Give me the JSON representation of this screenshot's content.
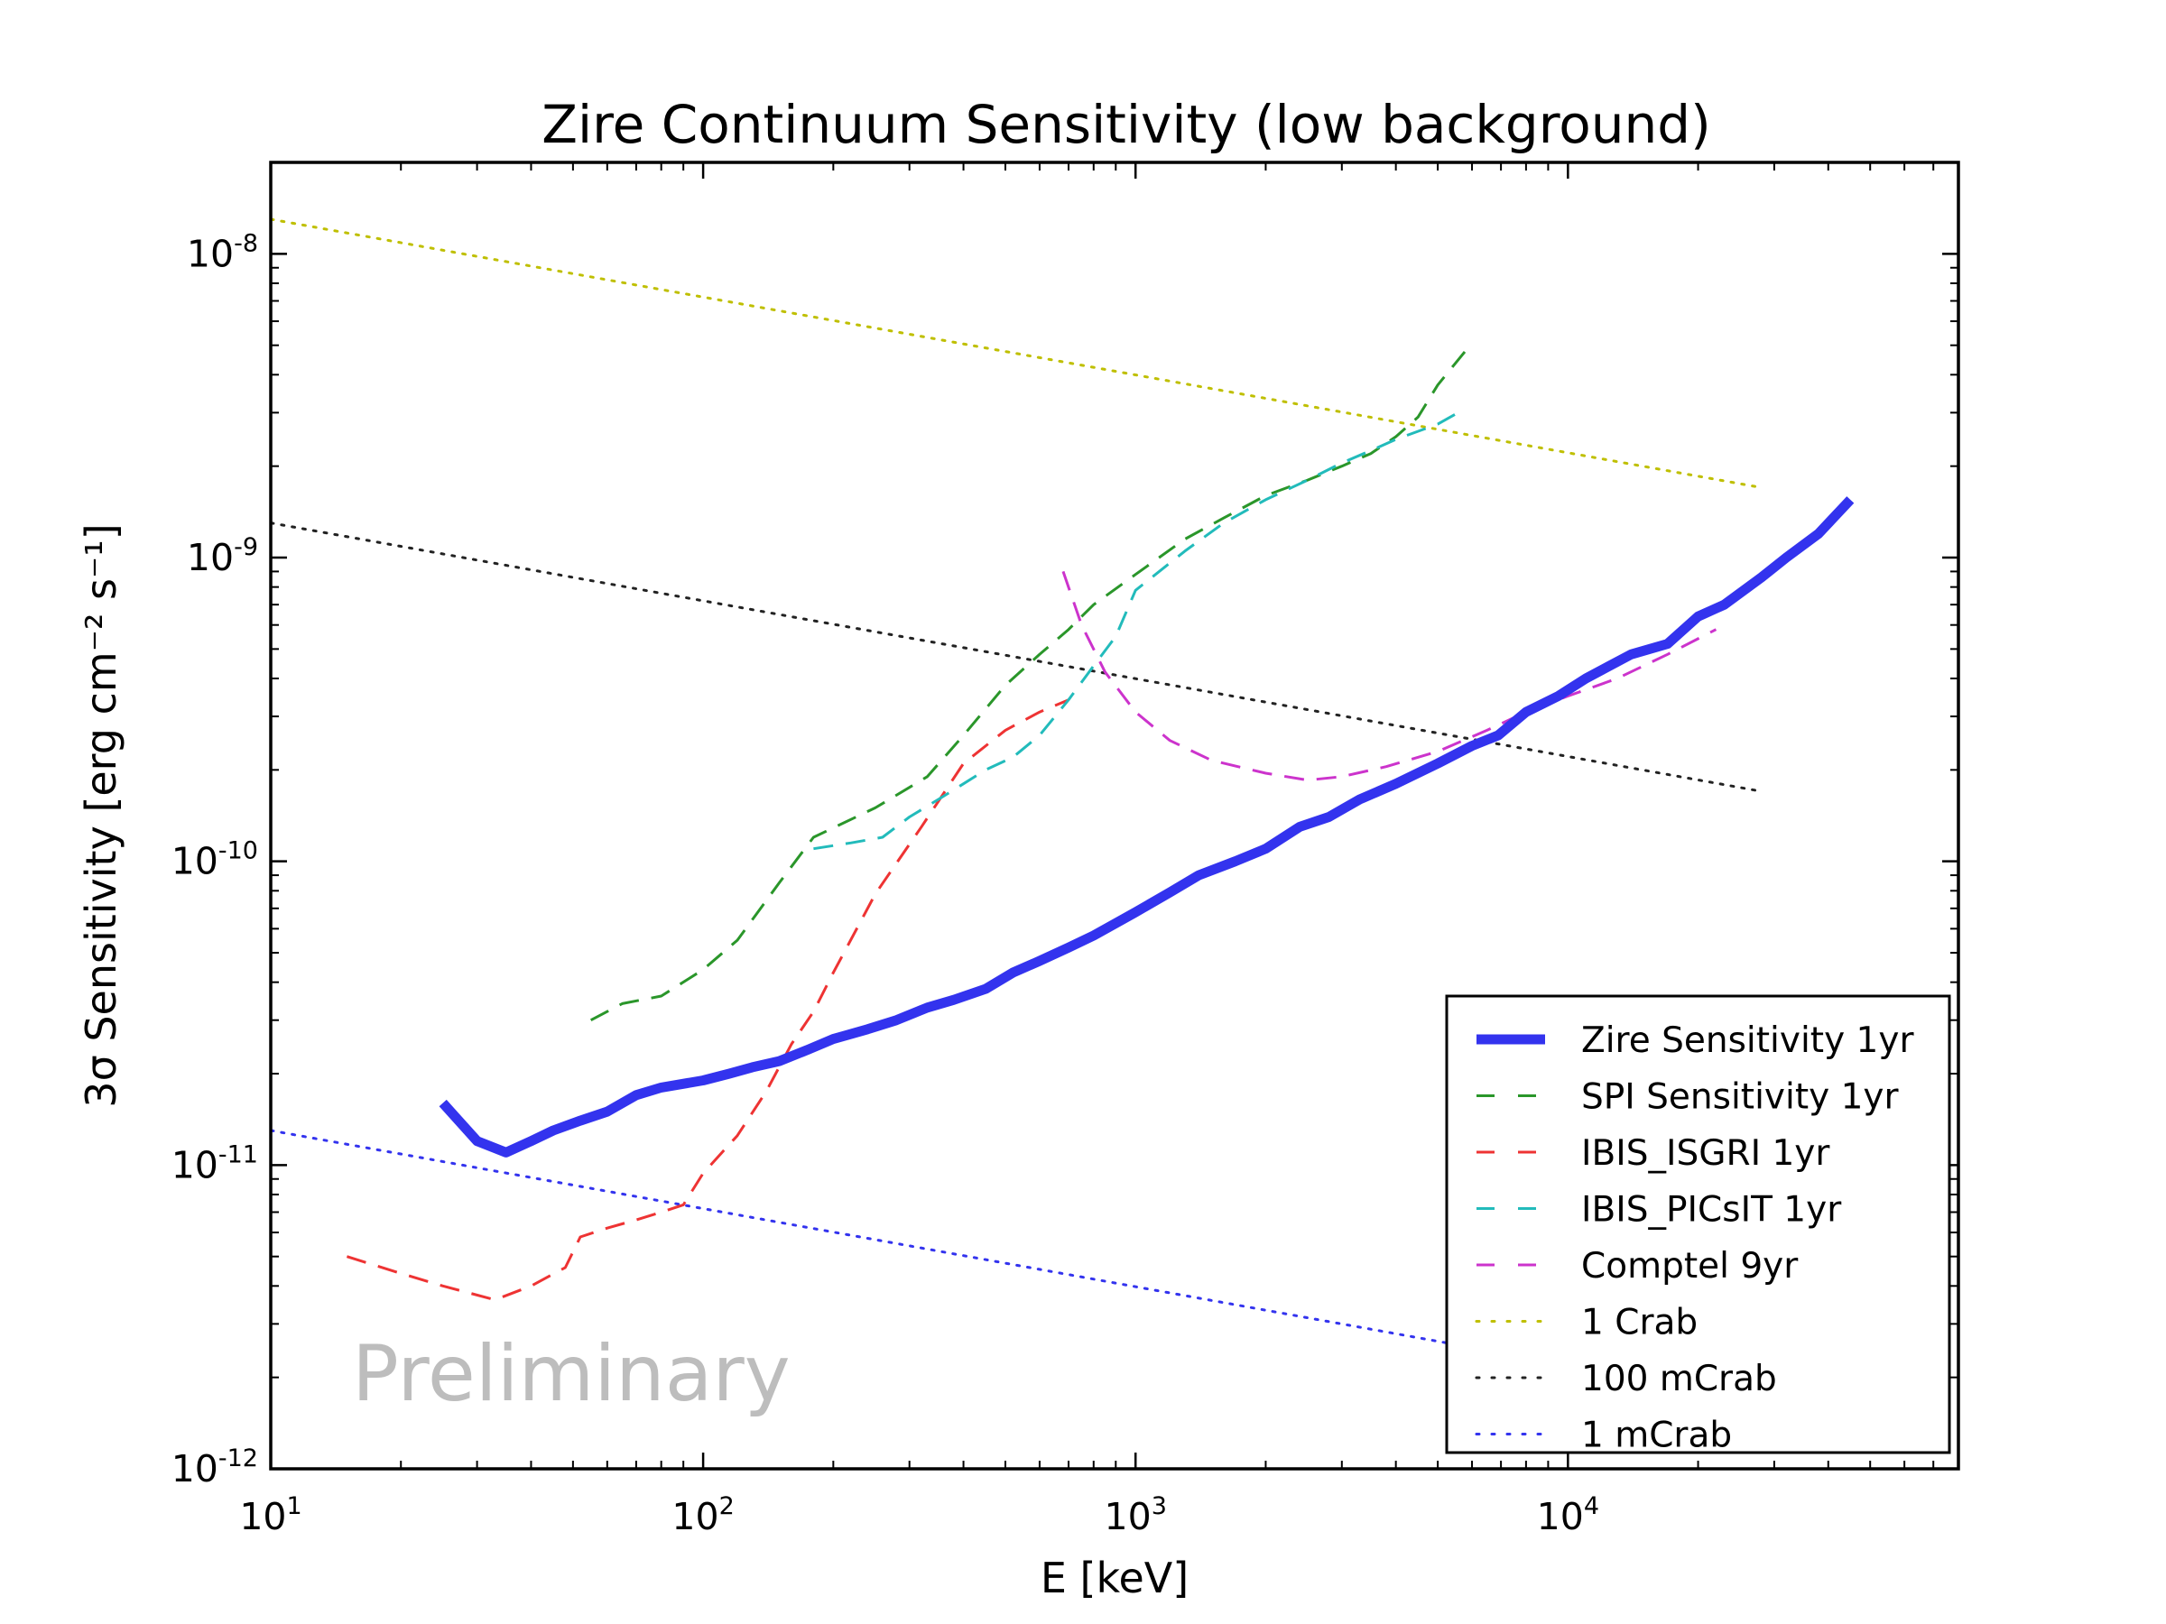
{
  "chart_data": {
    "type": "line",
    "title": "Zire Continuum Sensitivity (low background)",
    "xlabel": "E [keV]",
    "ylabel": "3σ Sensitivity [erg cm⁻² s⁻¹]",
    "xscale": "log",
    "yscale": "log",
    "xlim": [
      10,
      80000
    ],
    "ylim": [
      1e-12,
      2e-08
    ],
    "grid": false,
    "legend_position": "lower-right",
    "annotation": "Preliminary",
    "x_ticks": [
      {
        "value": 10,
        "base": "10",
        "exp": "1"
      },
      {
        "value": 100,
        "base": "10",
        "exp": "2"
      },
      {
        "value": 1000,
        "base": "10",
        "exp": "3"
      },
      {
        "value": 10000,
        "base": "10",
        "exp": "4"
      }
    ],
    "y_ticks": [
      {
        "value": 1e-12,
        "base": "10",
        "exp": "-12"
      },
      {
        "value": 1e-11,
        "base": "10",
        "exp": "-11"
      },
      {
        "value": 1e-10,
        "base": "10",
        "exp": "-10"
      },
      {
        "value": 1e-09,
        "base": "10",
        "exp": "-9"
      },
      {
        "value": 1e-08,
        "base": "10",
        "exp": "-8"
      }
    ],
    "series": [
      {
        "name": "Zire Sensitivity 1yr",
        "color": "#3333ee",
        "style": "solid",
        "width": 11,
        "x": [
          25,
          30,
          35,
          40,
          45,
          52,
          60,
          70,
          80,
          100,
          115,
          130,
          150,
          175,
          200,
          240,
          280,
          330,
          380,
          450,
          520,
          600,
          700,
          800,
          1000,
          1200,
          1400,
          1700,
          2000,
          2400,
          2800,
          3300,
          4000,
          5000,
          6000,
          6900,
          8000,
          9500,
          11000,
          14000,
          17000,
          20000,
          23000,
          28000,
          32000,
          38000,
          45000
        ],
        "y": [
          1.6e-11,
          1.2e-11,
          1.1e-11,
          1.2e-11,
          1.3e-11,
          1.4e-11,
          1.5e-11,
          1.7e-11,
          1.8e-11,
          1.9e-11,
          2e-11,
          2.1e-11,
          2.2e-11,
          2.4e-11,
          2.6e-11,
          2.8e-11,
          3e-11,
          3.3e-11,
          3.5e-11,
          3.8e-11,
          4.3e-11,
          4.7e-11,
          5.2e-11,
          5.7e-11,
          6.8e-11,
          7.9e-11,
          9e-11,
          1e-10,
          1.1e-10,
          1.3e-10,
          1.4e-10,
          1.6e-10,
          1.8e-10,
          2.1e-10,
          2.4e-10,
          2.6e-10,
          3.1e-10,
          3.5e-10,
          4e-10,
          4.8e-10,
          5.2e-10,
          6.4e-10,
          7e-10,
          8.6e-10,
          1e-09,
          1.2e-09,
          1.55e-09
        ]
      },
      {
        "name": "SPI Sensitivity 1yr",
        "color": "#2a962a",
        "style": "dashed",
        "width": 3,
        "x": [
          55,
          65,
          80,
          100,
          120,
          150,
          180,
          250,
          330,
          400,
          500,
          600,
          700,
          800,
          1000,
          1300,
          1600,
          2000,
          2500,
          3000,
          3500,
          4000,
          4500,
          5000,
          5800
        ],
        "y": [
          3e-11,
          3.4e-11,
          3.6e-11,
          4.4e-11,
          5.5e-11,
          8.5e-11,
          1.2e-10,
          1.5e-10,
          1.9e-10,
          2.6e-10,
          3.8e-10,
          4.8e-10,
          5.8e-10,
          7e-10,
          8.8e-10,
          1.15e-09,
          1.35e-09,
          1.6e-09,
          1.8e-09,
          2e-09,
          2.2e-09,
          2.5e-09,
          2.9e-09,
          3.7e-09,
          4.8e-09
        ]
      },
      {
        "name": "IBIS_ISGRI 1yr",
        "color": "#ee3333",
        "style": "dashed",
        "width": 3,
        "x": [
          15,
          20,
          25,
          33,
          40,
          48,
          52,
          60,
          70,
          80,
          90,
          100,
          120,
          140,
          160,
          180,
          200,
          250,
          320,
          400,
          500,
          600,
          700
        ],
        "y": [
          5e-12,
          4.4e-12,
          4e-12,
          3.6e-12,
          4e-12,
          4.6e-12,
          5.8e-12,
          6.2e-12,
          6.6e-12,
          7e-12,
          7.4e-12,
          9.4e-12,
          1.25e-11,
          1.75e-11,
          2.5e-11,
          3.2e-11,
          4.3e-11,
          7.8e-11,
          1.3e-10,
          2.1e-10,
          2.7e-10,
          3.1e-10,
          3.4e-10
        ]
      },
      {
        "name": "IBIS_PICsIT 1yr",
        "color": "#22bbbb",
        "style": "dashed",
        "width": 3,
        "x": [
          180,
          220,
          260,
          300,
          350,
          400,
          450,
          520,
          600,
          700,
          800,
          900,
          1000,
          1300,
          1600,
          2000,
          2500,
          3000,
          3500,
          4000,
          5000,
          5800
        ],
        "y": [
          1.1e-10,
          1.15e-10,
          1.2e-10,
          1.4e-10,
          1.6e-10,
          1.8e-10,
          2e-10,
          2.2e-10,
          2.6e-10,
          3.4e-10,
          4.4e-10,
          5.5e-10,
          7.8e-10,
          1.05e-09,
          1.3e-09,
          1.55e-09,
          1.8e-09,
          2.05e-09,
          2.25e-09,
          2.45e-09,
          2.75e-09,
          3.1e-09
        ]
      },
      {
        "name": "Comptel 9yr",
        "color": "#cc33cc",
        "style": "dashed",
        "width": 3,
        "x": [
          680,
          750,
          850,
          1000,
          1200,
          1500,
          2000,
          2500,
          3000,
          3800,
          5000,
          6500,
          8000,
          10000,
          13000,
          17000,
          22000
        ],
        "y": [
          9e-10,
          6e-10,
          4.2e-10,
          3.1e-10,
          2.5e-10,
          2.15e-10,
          1.95e-10,
          1.85e-10,
          1.9e-10,
          2.05e-10,
          2.3e-10,
          2.7e-10,
          3.1e-10,
          3.5e-10,
          4e-10,
          4.8e-10,
          5.8e-10
        ]
      },
      {
        "name": "1 Crab",
        "color": "#bfbf00",
        "style": "dotted",
        "width": 3,
        "x": [
          10,
          28000
        ],
        "y": [
          1.3e-08,
          1.7e-09
        ]
      },
      {
        "name": "100 mCrab",
        "color": "#222222",
        "style": "dotted",
        "width": 3,
        "x": [
          10,
          28000
        ],
        "y": [
          1.3e-09,
          1.7e-10
        ]
      },
      {
        "name": "1 mCrab",
        "color": "#3333ee",
        "style": "dotted",
        "width": 3,
        "x": [
          10,
          10000
        ],
        "y": [
          1.3e-11,
          2.2e-12
        ]
      }
    ]
  }
}
